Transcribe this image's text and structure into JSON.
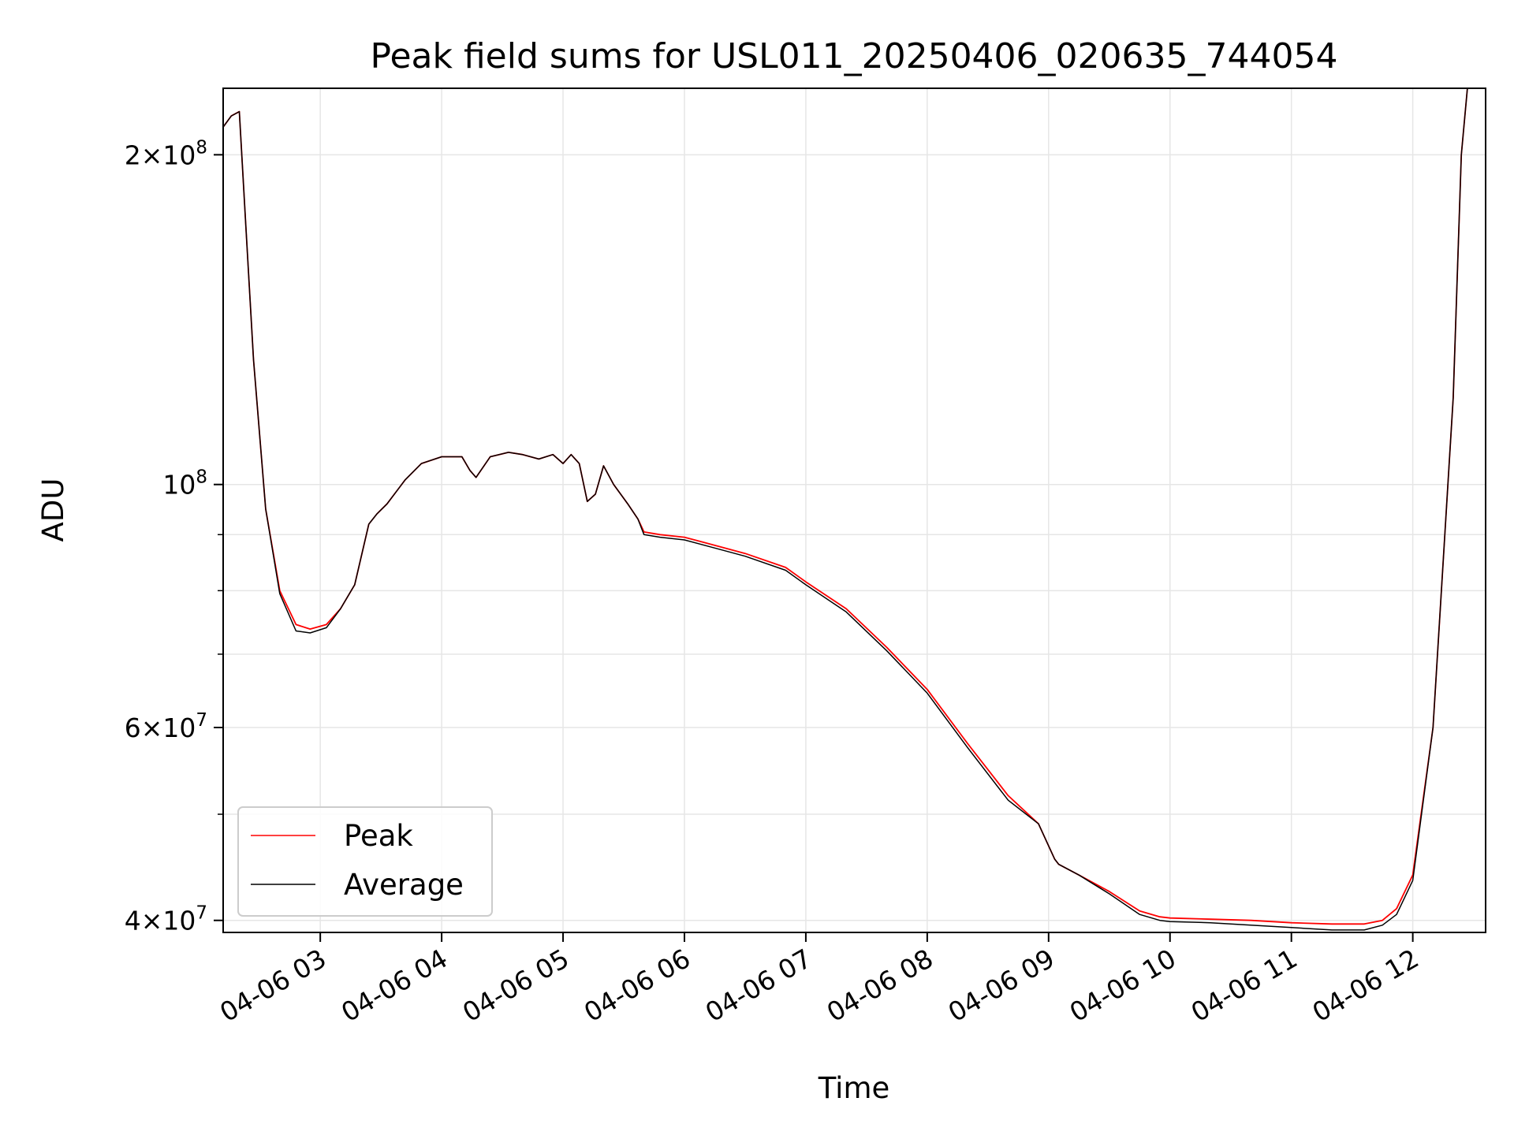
{
  "chart_data": {
    "type": "line",
    "title": "Peak field sums for USL011_20250406_020635_744054",
    "xlabel": "Time",
    "ylabel": "ADU",
    "yscale": "log",
    "xlim": [
      "04-06 02:12",
      "04-06 12:36"
    ],
    "ylim": [
      39000000,
      230000000
    ],
    "grid": true,
    "legend": "lower-left",
    "x_ticks": [
      "04-06 03",
      "04-06 04",
      "04-06 05",
      "04-06 06",
      "04-06 07",
      "04-06 08",
      "04-06 09",
      "04-06 10",
      "04-06 11",
      "04-06 12"
    ],
    "y_ticks": [
      {
        "value": 40000000,
        "mantissa": "4",
        "exponent": "7"
      },
      {
        "value": 60000000,
        "mantissa": "6",
        "exponent": "7"
      },
      {
        "value": 100000000,
        "mantissa": "",
        "exponent": "8"
      },
      {
        "value": 200000000,
        "mantissa": "2",
        "exponent": "8"
      }
    ],
    "x": [
      "02:12",
      "02:16",
      "02:20",
      "02:23",
      "02:27",
      "02:33",
      "02:40",
      "02:48",
      "02:55",
      "03:03",
      "03:10",
      "03:17",
      "03:24",
      "03:28",
      "03:33",
      "03:42",
      "03:50",
      "04:00",
      "04:10",
      "04:14",
      "04:17",
      "04:24",
      "04:33",
      "04:40",
      "04:48",
      "04:55",
      "05:00",
      "05:04",
      "05:08",
      "05:12",
      "05:16",
      "05:20",
      "05:25",
      "05:32",
      "05:37",
      "05:40",
      "05:48",
      "06:00",
      "06:15",
      "06:30",
      "06:50",
      "07:00",
      "07:20",
      "07:40",
      "08:00",
      "08:20",
      "08:40",
      "08:55",
      "09:03",
      "09:05",
      "09:15",
      "09:30",
      "09:45",
      "09:55",
      "10:00",
      "10:20",
      "10:40",
      "11:00",
      "11:20",
      "11:36",
      "11:45",
      "11:52",
      "12:00",
      "12:10",
      "12:20",
      "12:24",
      "12:27",
      "12:36"
    ],
    "series": [
      {
        "name": "Peak",
        "color": "#ff0000",
        "values": [
          212000000,
          217000000,
          219000000,
          175000000,
          130000000,
          95000000,
          80000000,
          74500000,
          73800000,
          74500000,
          77000000,
          81000000,
          92000000,
          94000000,
          96000000,
          101000000,
          104500000,
          106000000,
          106000000,
          103000000,
          101500000,
          106000000,
          107000000,
          106500000,
          105500000,
          106500000,
          104500000,
          106500000,
          104500000,
          96500000,
          98000000,
          104000000,
          100000000,
          96000000,
          93000000,
          90500000,
          90000000,
          89500000,
          88000000,
          86500000,
          84000000,
          81500000,
          77000000,
          71000000,
          65000000,
          58000000,
          52000000,
          49000000,
          45500000,
          45000000,
          44000000,
          42500000,
          40800000,
          40300000,
          40200000,
          40100000,
          40000000,
          39800000,
          39700000,
          39700000,
          40000000,
          41000000,
          44000000,
          60000000,
          120000000,
          200000000,
          230000000,
          230000000
        ]
      },
      {
        "name": "Average",
        "color": "#000000",
        "values": [
          212000000,
          217000000,
          219000000,
          175000000,
          130000000,
          95000000,
          79500000,
          73500000,
          73200000,
          74000000,
          77000000,
          81000000,
          92000000,
          94000000,
          96000000,
          101000000,
          104500000,
          106000000,
          106000000,
          103000000,
          101500000,
          106000000,
          107000000,
          106500000,
          105500000,
          106500000,
          104500000,
          106500000,
          104500000,
          96500000,
          98000000,
          104000000,
          100000000,
          96000000,
          93000000,
          90000000,
          89500000,
          89000000,
          87500000,
          86000000,
          83500000,
          81000000,
          76500000,
          70500000,
          64500000,
          57500000,
          51500000,
          49000000,
          45500000,
          45000000,
          44000000,
          42300000,
          40500000,
          40000000,
          39900000,
          39800000,
          39600000,
          39400000,
          39200000,
          39200000,
          39600000,
          40500000,
          43500000,
          60000000,
          120000000,
          200000000,
          230000000,
          230000000
        ]
      }
    ]
  }
}
